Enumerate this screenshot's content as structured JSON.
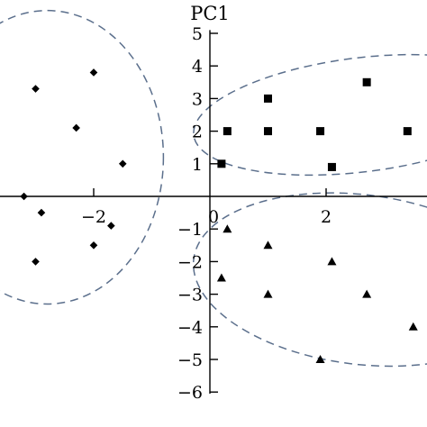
{
  "chart_data": {
    "type": "scatter",
    "ylabel": "PC1",
    "xlim": [
      -3.6,
      3.7
    ],
    "ylim": [
      -6.2,
      5.2
    ],
    "x_ticks": [
      {
        "value": -2,
        "label": "−2"
      },
      {
        "value": 0,
        "label": "0"
      },
      {
        "value": 2,
        "label": "2"
      }
    ],
    "y_ticks": [
      {
        "value": 5,
        "label": "5"
      },
      {
        "value": 4,
        "label": "4"
      },
      {
        "value": 3,
        "label": "3"
      },
      {
        "value": 2,
        "label": "2"
      },
      {
        "value": 1,
        "label": "1"
      },
      {
        "value": -1,
        "label": "−1"
      },
      {
        "value": -2,
        "label": "−2"
      },
      {
        "value": -3,
        "label": "−3"
      },
      {
        "value": -4,
        "label": "−4"
      },
      {
        "value": -5,
        "label": "−5"
      },
      {
        "value": -6,
        "label": "−6"
      }
    ],
    "series": [
      {
        "marker": "diamond",
        "points": [
          {
            "x": -3.0,
            "y": 3.3
          },
          {
            "x": -2.0,
            "y": 3.8
          },
          {
            "x": -2.3,
            "y": 2.1
          },
          {
            "x": -1.5,
            "y": 1.0
          },
          {
            "x": -3.2,
            "y": 0.0
          },
          {
            "x": -2.9,
            "y": -0.5
          },
          {
            "x": -1.7,
            "y": -0.9
          },
          {
            "x": -2.0,
            "y": -1.5
          },
          {
            "x": -3.0,
            "y": -2.0
          }
        ]
      },
      {
        "marker": "square",
        "points": [
          {
            "x": 1.0,
            "y": 3.0
          },
          {
            "x": 2.7,
            "y": 3.5
          },
          {
            "x": 0.3,
            "y": 2.0
          },
          {
            "x": 1.0,
            "y": 2.0
          },
          {
            "x": 1.9,
            "y": 2.0
          },
          {
            "x": 3.4,
            "y": 2.0
          },
          {
            "x": 0.2,
            "y": 1.0
          },
          {
            "x": 2.1,
            "y": 0.9
          }
        ]
      },
      {
        "marker": "triangle",
        "points": [
          {
            "x": 0.3,
            "y": -1.0
          },
          {
            "x": 1.0,
            "y": -1.5
          },
          {
            "x": 2.1,
            "y": -2.0
          },
          {
            "x": 0.2,
            "y": -2.5
          },
          {
            "x": 1.0,
            "y": -3.0
          },
          {
            "x": 2.7,
            "y": -3.0
          },
          {
            "x": 3.5,
            "y": -4.0
          },
          {
            "x": 1.9,
            "y": -5.0
          }
        ]
      }
    ],
    "clusters": [
      {
        "cx": -2.8,
        "cy": 1.2,
        "rx": 2.0,
        "ry": 4.5,
        "rotation": 0
      },
      {
        "cx": 2.6,
        "cy": 2.5,
        "rx": 2.9,
        "ry": 1.75,
        "rotation": -7
      },
      {
        "cx": 2.6,
        "cy": -2.55,
        "rx": 2.9,
        "ry": 2.6,
        "rotation": 7
      }
    ],
    "colors": {
      "axis": "#000000",
      "points": "#000000",
      "cluster": "#5b6f8c"
    }
  }
}
